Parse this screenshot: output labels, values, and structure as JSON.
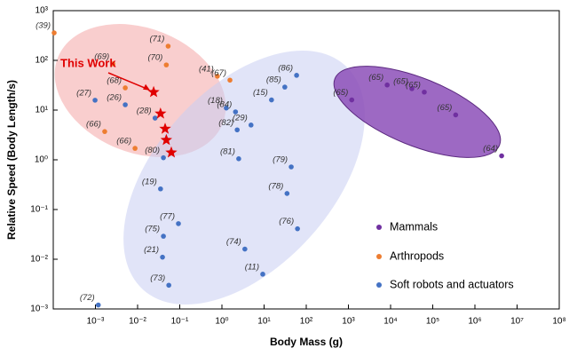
{
  "chart_data": {
    "type": "scatter",
    "x_label": "Body Mass (g)",
    "y_label": "Relative Speed (Body Length/s)",
    "log_x": true,
    "log_y": true,
    "xlim": [
      0.0001,
      100000000
    ],
    "ylim": [
      0.001,
      1000
    ],
    "xticks": [
      {
        "value": 0.001,
        "label": "10⁻³"
      },
      {
        "value": 0.01,
        "label": "10⁻²"
      },
      {
        "value": 0.1,
        "label": "10⁻¹"
      },
      {
        "value": 1,
        "label": "10⁰"
      },
      {
        "value": 10,
        "label": "10¹"
      },
      {
        "value": 100,
        "label": "10²"
      },
      {
        "value": 1000,
        "label": "10³"
      },
      {
        "value": 10000,
        "label": "10⁴"
      },
      {
        "value": 100000,
        "label": "10⁵"
      },
      {
        "value": 1000000,
        "label": "10⁶"
      },
      {
        "value": 10000000,
        "label": "10⁷"
      },
      {
        "value": 100000000,
        "label": "10⁸"
      }
    ],
    "yticks": [
      {
        "value": 0.001,
        "label": "10⁻³"
      },
      {
        "value": 0.01,
        "label": "10⁻²"
      },
      {
        "value": 0.1,
        "label": "10⁻¹"
      },
      {
        "value": 1,
        "label": "10⁰"
      },
      {
        "value": 10,
        "label": "10¹"
      },
      {
        "value": 100,
        "label": "10²"
      },
      {
        "value": 1000,
        "label": "10³"
      }
    ],
    "legend": "lower right",
    "series": [
      {
        "name": "Mammals",
        "color": "#7030a0",
        "x": [
          1200,
          8300,
          32000,
          63000,
          350000,
          4300000
        ],
        "values": [
          16,
          32,
          27,
          23,
          8,
          1.2
        ],
        "point_labels": [
          "(65)",
          "(65)",
          "(65)",
          "(65)",
          "(65)",
          "(64)"
        ]
      },
      {
        "name": "Arthropods",
        "color": "#ed7d31",
        "x": [
          0.000105,
          0.0026,
          0.053,
          0.048,
          0.78,
          1.55,
          0.0051,
          0.00166,
          0.0087
        ],
        "values": [
          357,
          85,
          193,
          81,
          48,
          40,
          28,
          3.7,
          1.7
        ],
        "point_labels": [
          "(39)",
          "(69)",
          "(71)",
          "(70)",
          "(41)",
          "(67)",
          "(68)",
          "(66)",
          "(66)"
        ]
      },
      {
        "name": "Soft robots and actuators",
        "color": "#4472c4",
        "x": [
          0.00117,
          0.00098,
          0.0051,
          0.026,
          0.041,
          0.035,
          0.093,
          0.041,
          0.039,
          0.055,
          1.27,
          2.1,
          2.3,
          4.9,
          15,
          31,
          59,
          2.5,
          44,
          35,
          62,
          3.5,
          9.3
        ],
        "values": [
          0.0012,
          15.8,
          12.8,
          6.9,
          1.1,
          0.26,
          0.052,
          0.029,
          0.011,
          0.003,
          11,
          9.2,
          4,
          5,
          16,
          29,
          50,
          1.05,
          0.72,
          0.21,
          0.041,
          0.016,
          0.005
        ],
        "point_labels": [
          "(72)",
          "(27)",
          "(26)",
          "(28)",
          "(80)",
          "(19)",
          "(77)",
          "(75)",
          "(21)",
          "(73)",
          "(18)",
          "(84)",
          "(82)",
          "(29)",
          "(15)",
          "(85)",
          "(86)",
          "(81)",
          "(79)",
          "(78)",
          "(76)",
          "(74)",
          "(11)"
        ]
      }
    ],
    "this_work": {
      "label": "This Work",
      "color": "#e00000",
      "x": [
        0.024,
        0.035,
        0.045,
        0.048,
        0.063
      ],
      "values": [
        23,
        8.5,
        4.2,
        2.5,
        1.4
      ]
    }
  }
}
